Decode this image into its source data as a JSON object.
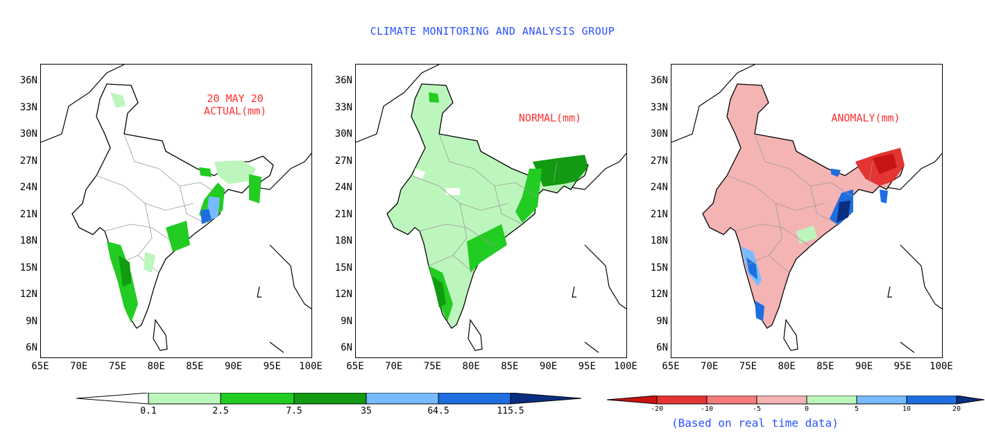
{
  "header": {
    "title": "CLIMATE MONITORING AND ANALYSIS GROUP"
  },
  "axes": {
    "y_ticks": [
      "36N",
      "33N",
      "30N",
      "27N",
      "24N",
      "21N",
      "18N",
      "15N",
      "12N",
      "9N",
      "6N"
    ],
    "x_ticks": [
      "65E",
      "70E",
      "75E",
      "80E",
      "85E",
      "90E",
      "95E",
      "100E"
    ]
  },
  "panels": [
    {
      "id": "actual",
      "title": "20 MAY 20\nACTUAL(mm)",
      "fill": "#ffffff"
    },
    {
      "id": "normal",
      "title": "NORMAL(mm)",
      "fill": "#bdf6bd"
    },
    {
      "id": "anomaly",
      "title": "ANOMALY(mm)",
      "fill": "#f4b4b4"
    }
  ],
  "colorbar_rain": {
    "labels": [
      "0.1",
      "2.5",
      "7.5",
      "35",
      "64.5",
      "115.5"
    ],
    "colors": [
      "#ffffff",
      "#bdf6bd",
      "#22cc22",
      "#129a12",
      "#78bcff",
      "#1e6ee0",
      "#0a2e80"
    ]
  },
  "colorbar_anomaly": {
    "labels": [
      "-20",
      "-10",
      "-5",
      "0",
      "5",
      "10",
      "20"
    ],
    "colors": [
      "#c81414",
      "#e43434",
      "#f47c7c",
      "#f4b4b4",
      "#bdf6bd",
      "#78bcff",
      "#1e6ee0",
      "#0a2e80"
    ],
    "note": "(Based on real time data)"
  },
  "colors": {
    "title": "#2a50ff",
    "panel_title": "#ff3030",
    "border": "#000000",
    "state_border": "#999999"
  }
}
